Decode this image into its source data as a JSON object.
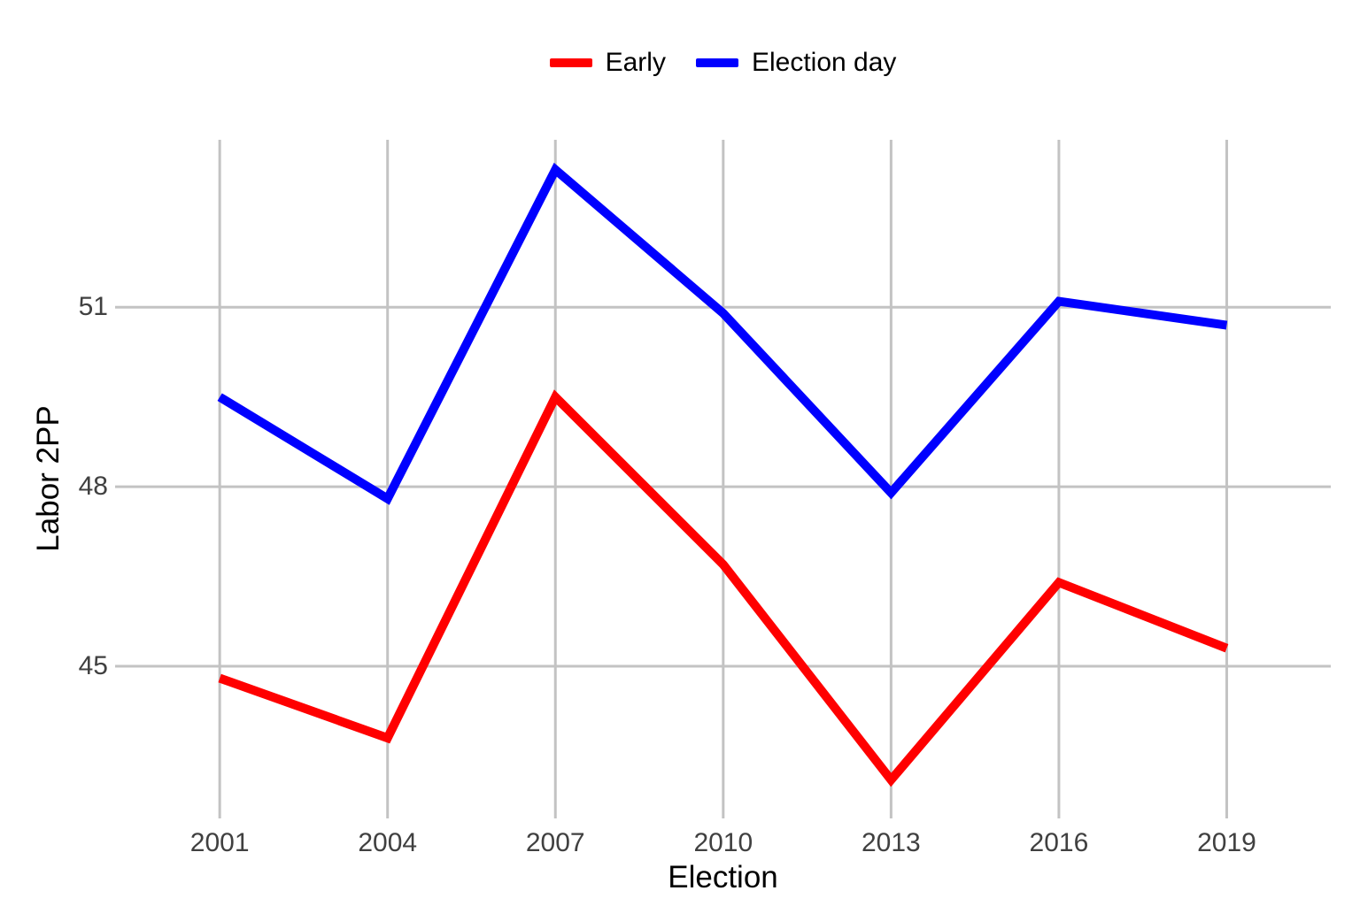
{
  "page": {
    "background": "#ffffff",
    "grid_color": "#c3c3c3",
    "tick_label_color": "#404040",
    "title_color": "#000000"
  },
  "chart_data": {
    "type": "line",
    "x": [
      2001,
      2004,
      2007,
      2010,
      2013,
      2016,
      2019
    ],
    "x_tick_labels": [
      "2001",
      "2004",
      "2007",
      "2010",
      "2013",
      "2016",
      "2019"
    ],
    "series": [
      {
        "name": "Early",
        "color": "#ff0000",
        "values": [
          44.8,
          43.8,
          49.5,
          46.7,
          43.1,
          46.4,
          45.3
        ]
      },
      {
        "name": "Election day",
        "color": "#0000ff",
        "values": [
          49.5,
          47.8,
          53.3,
          50.9,
          47.9,
          51.1,
          50.7
        ]
      }
    ],
    "title": "",
    "xlabel": "Election",
    "ylabel": "Labor 2PP",
    "y_ticks": [
      45,
      48,
      51
    ],
    "y_tick_labels": [
      "45",
      "48",
      "51"
    ],
    "ylim": [
      42.5,
      53.8
    ],
    "xlim": [
      1999.13,
      2020.86
    ],
    "grid": true,
    "legend_position": "top-center",
    "line_width": 10
  }
}
